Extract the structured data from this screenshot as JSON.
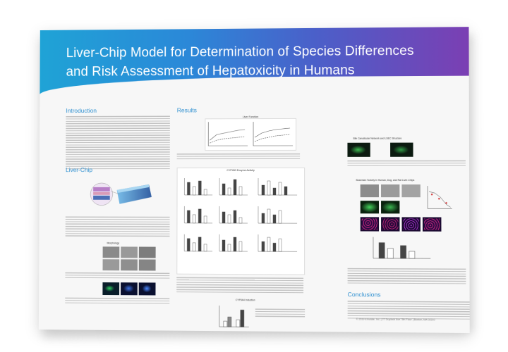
{
  "poster": {
    "title_line1": "Liver-Chip Model for Determination of Species Differences",
    "title_line2": "and Risk Assessment of Hepatoxicity in Humans",
    "sections": {
      "introduction": "Introduction",
      "liver_chip": "Liver-Chip",
      "results": "Results",
      "conclusions": "Conclusions",
      "morphology": "Morphology"
    },
    "panels": {
      "liver_function": "Liver Function",
      "cyp450_activity": "CYP450 Enzyme Activity",
      "cyp3a4_induction": "CYP3A4 Induction",
      "bile_canalicular": "Bile Canalicular Network and LSEC Structure",
      "bosentan": "Bosentan Toxicity in Human, Dog, and Rat Liver-Chips"
    },
    "footer": "© 2019 Emulate, Inc. | 27 Drydock Ave. 5th Floor | Boston, MA 02210",
    "colors": {
      "banner_start": "#1fa3d6",
      "banner_end": "#7b3fb3",
      "heading": "#2d8fd0"
    }
  }
}
